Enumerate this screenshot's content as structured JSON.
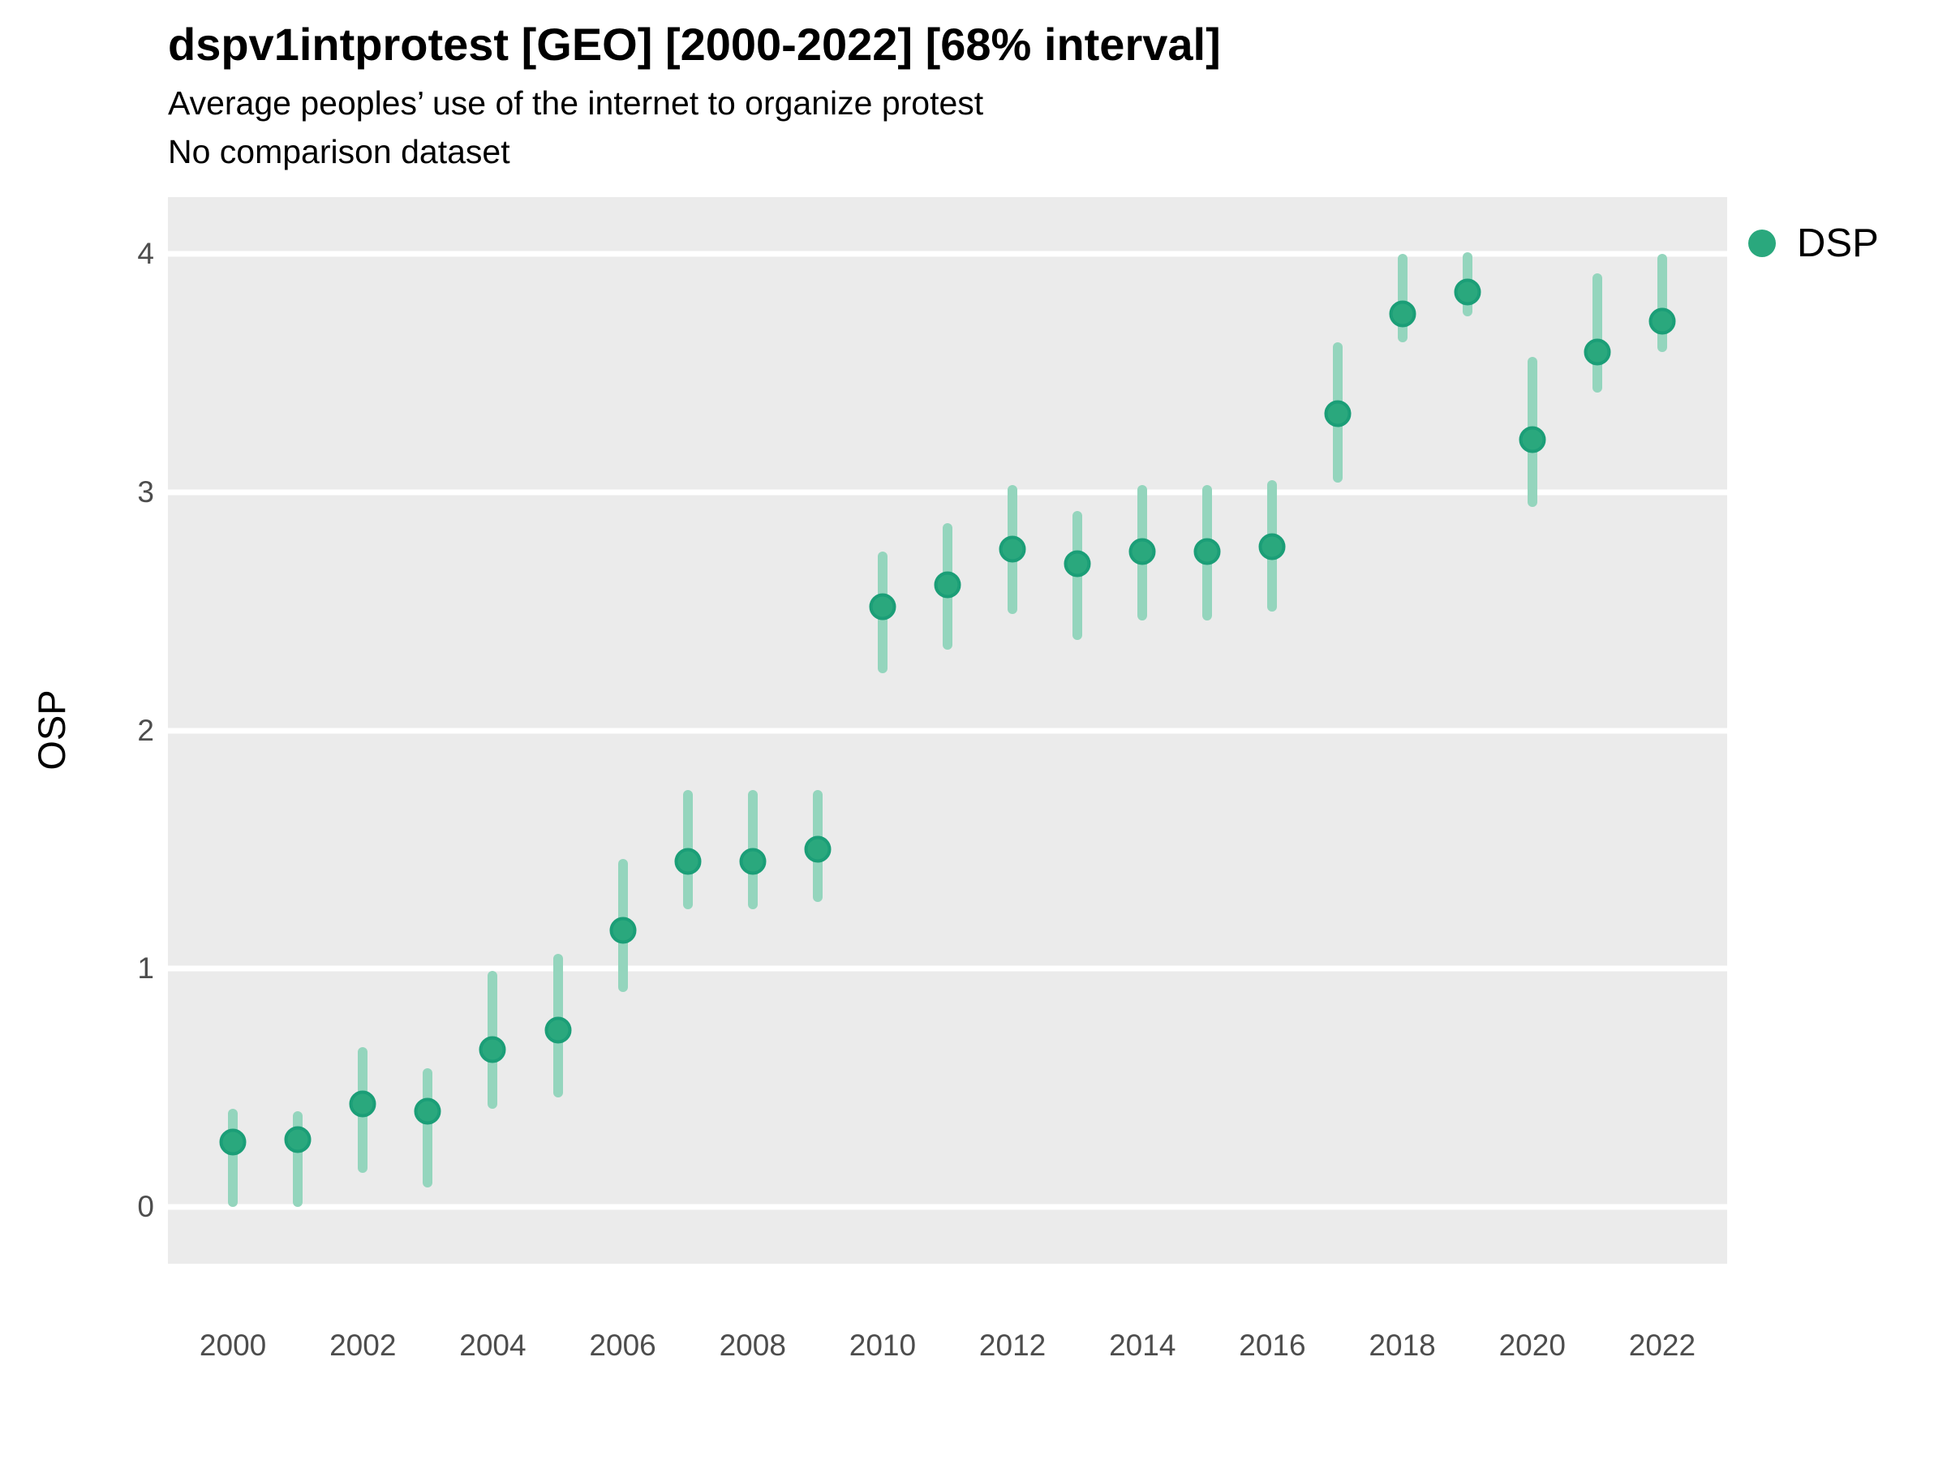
{
  "header": {
    "title": "dspv1intprotest [GEO] [2000-2022] [68% interval]",
    "subtitle": "Average peoples’ use of the internet to organize protest",
    "note": "No comparison dataset"
  },
  "colors": {
    "point_fill": "#2aa87d",
    "point_stroke": "#1b9e77",
    "interval_bar": "#94d5bd",
    "panel_background": "#ebebeb",
    "gridline": "#ffffff",
    "tick_text": "#4d4d4d"
  },
  "chart_data": {
    "type": "pointrange",
    "title": "dspv1intprotest [GEO] [2000-2022] [68% interval]",
    "subtitle": "Average peoples’ use of the internet to organize protest",
    "note": "No comparison dataset",
    "xlabel": "",
    "ylabel": "OSP",
    "interval_level": "68%",
    "grid": "major white gridlines on gray panel",
    "legend": {
      "position": "right",
      "entries": [
        {
          "label": "DSP",
          "color": "#2aa87d"
        }
      ]
    },
    "xlim": [
      1999,
      2023
    ],
    "ylim": [
      -0.24,
      4.24
    ],
    "xticks": [
      2000,
      2002,
      2004,
      2006,
      2008,
      2010,
      2012,
      2014,
      2016,
      2018,
      2020,
      2022
    ],
    "yticks": [
      0,
      1,
      2,
      3,
      4
    ],
    "series": [
      {
        "name": "DSP",
        "points": [
          {
            "year": 2000,
            "est": 0.27,
            "lo": 0.0,
            "hi": 0.41
          },
          {
            "year": 2001,
            "est": 0.28,
            "lo": 0.0,
            "hi": 0.4
          },
          {
            "year": 2002,
            "est": 0.43,
            "lo": 0.14,
            "hi": 0.67
          },
          {
            "year": 2003,
            "est": 0.4,
            "lo": 0.08,
            "hi": 0.58
          },
          {
            "year": 2004,
            "est": 0.66,
            "lo": 0.41,
            "hi": 0.99
          },
          {
            "year": 2005,
            "est": 0.74,
            "lo": 0.46,
            "hi": 1.06
          },
          {
            "year": 2006,
            "est": 1.16,
            "lo": 0.9,
            "hi": 1.46
          },
          {
            "year": 2007,
            "est": 1.45,
            "lo": 1.25,
            "hi": 1.75
          },
          {
            "year": 2008,
            "est": 1.45,
            "lo": 1.25,
            "hi": 1.75
          },
          {
            "year": 2009,
            "est": 1.5,
            "lo": 1.28,
            "hi": 1.75
          },
          {
            "year": 2010,
            "est": 2.52,
            "lo": 2.24,
            "hi": 2.75
          },
          {
            "year": 2011,
            "est": 2.61,
            "lo": 2.34,
            "hi": 2.87
          },
          {
            "year": 2012,
            "est": 2.76,
            "lo": 2.49,
            "hi": 3.03
          },
          {
            "year": 2013,
            "est": 2.7,
            "lo": 2.38,
            "hi": 2.92
          },
          {
            "year": 2014,
            "est": 2.75,
            "lo": 2.46,
            "hi": 3.03
          },
          {
            "year": 2015,
            "est": 2.75,
            "lo": 2.46,
            "hi": 3.03
          },
          {
            "year": 2016,
            "est": 2.77,
            "lo": 2.5,
            "hi": 3.05
          },
          {
            "year": 2017,
            "est": 3.33,
            "lo": 3.04,
            "hi": 3.63
          },
          {
            "year": 2018,
            "est": 3.75,
            "lo": 3.63,
            "hi": 4.0
          },
          {
            "year": 2019,
            "est": 3.84,
            "lo": 3.74,
            "hi": 4.01
          },
          {
            "year": 2020,
            "est": 3.22,
            "lo": 2.94,
            "hi": 3.57
          },
          {
            "year": 2021,
            "est": 3.59,
            "lo": 3.42,
            "hi": 3.92
          },
          {
            "year": 2022,
            "est": 3.72,
            "lo": 3.59,
            "hi": 4.0
          }
        ]
      }
    ]
  }
}
